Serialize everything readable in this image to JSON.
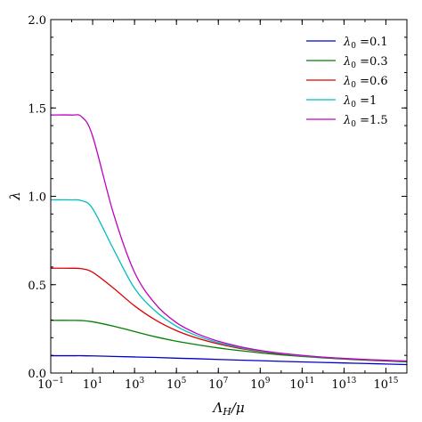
{
  "chart_data": {
    "type": "line",
    "xlabel": "Λ_H/μ",
    "ylabel": "λ",
    "xscale": "log",
    "xlim": [
      0.1,
      1e+16
    ],
    "ylim": [
      0.0,
      2.0
    ],
    "x_ticks": [
      {
        "value": 0.1,
        "mantissa": "10",
        "exp": "−1"
      },
      {
        "value": 10,
        "mantissa": "10",
        "exp": "1"
      },
      {
        "value": 1000,
        "mantissa": "10",
        "exp": "3"
      },
      {
        "value": 100000,
        "mantissa": "10",
        "exp": "5"
      },
      {
        "value": 10000000,
        "mantissa": "10",
        "exp": "7"
      },
      {
        "value": 1000000000,
        "mantissa": "10",
        "exp": "9"
      },
      {
        "value": 100000000000,
        "mantissa": "10",
        "exp": "11"
      },
      {
        "value": 10000000000000,
        "mantissa": "10",
        "exp": "13"
      },
      {
        "value": 1000000000000000,
        "mantissa": "10",
        "exp": "15"
      }
    ],
    "y_ticks": [
      "0.0",
      "0.5",
      "1.0",
      "1.5",
      "2.0"
    ],
    "legend_position": "top-right",
    "grid": false,
    "x": [
      0.1,
      1,
      3,
      10,
      100,
      1000,
      10000,
      100000,
      1000000,
      10000000,
      100000000,
      1000000000,
      10000000000,
      100000000000,
      1000000000000,
      10000000000000,
      100000000000000,
      1000000000000000,
      1e+16
    ],
    "series": [
      {
        "name": "λ0 = 0.1",
        "label_value": "0.1",
        "color": "#0000cc",
        "values": [
          0.098,
          0.098,
          0.098,
          0.097,
          0.094,
          0.091,
          0.088,
          0.084,
          0.081,
          0.077,
          0.073,
          0.07,
          0.066,
          0.063,
          0.06,
          0.057,
          0.054,
          0.051,
          0.048
        ]
      },
      {
        "name": "λ0 = 0.3",
        "label_value": "0.3",
        "color": "#007f00",
        "values": [
          0.298,
          0.298,
          0.297,
          0.29,
          0.265,
          0.235,
          0.205,
          0.18,
          0.16,
          0.142,
          0.127,
          0.114,
          0.103,
          0.094,
          0.086,
          0.079,
          0.073,
          0.068,
          0.063
        ]
      },
      {
        "name": "λ0 = 0.6",
        "label_value": "0.6",
        "color": "#dd0000",
        "values": [
          0.593,
          0.593,
          0.59,
          0.57,
          0.48,
          0.38,
          0.3,
          0.24,
          0.197,
          0.165,
          0.14,
          0.122,
          0.108,
          0.097,
          0.088,
          0.081,
          0.075,
          0.07,
          0.066
        ]
      },
      {
        "name": "λ0 = 1",
        "label_value": "1",
        "color": "#00bfbf",
        "values": [
          0.98,
          0.98,
          0.975,
          0.93,
          0.7,
          0.48,
          0.35,
          0.265,
          0.21,
          0.172,
          0.145,
          0.125,
          0.11,
          0.098,
          0.089,
          0.082,
          0.076,
          0.071,
          0.067
        ]
      },
      {
        "name": "λ0 = 1.5",
        "label_value": "1.5",
        "color": "#bf00bf",
        "values": [
          1.46,
          1.46,
          1.45,
          1.34,
          0.9,
          0.57,
          0.39,
          0.285,
          0.222,
          0.18,
          0.15,
          0.128,
          0.112,
          0.1,
          0.09,
          0.083,
          0.077,
          0.072,
          0.068
        ]
      }
    ]
  }
}
